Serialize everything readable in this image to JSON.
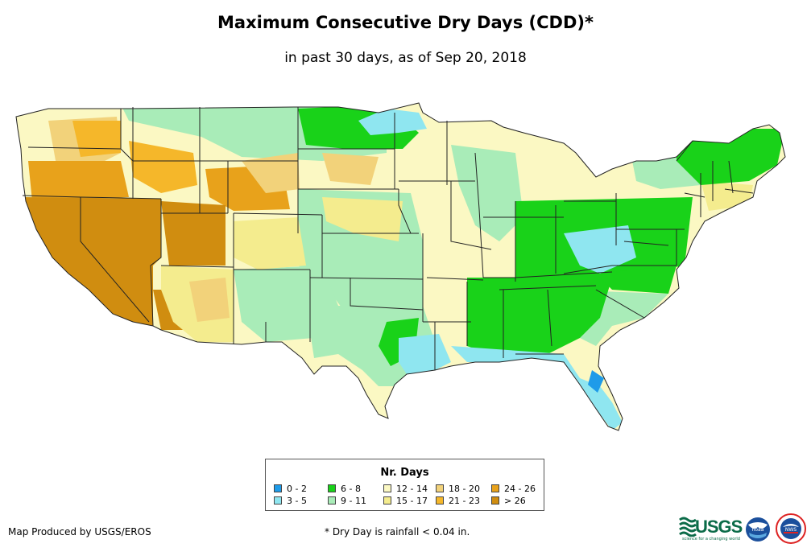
{
  "title": "Maximum Consecutive Dry Days (CDD)*",
  "subtitle": "in past 30 days, as of Sep 20, 2018",
  "legend": {
    "title": "Nr. Days",
    "items": [
      {
        "label": "0 - 2",
        "color": "#1e9be9"
      },
      {
        "label": "3 - 5",
        "color": "#8fe6f0"
      },
      {
        "label": "6 - 8",
        "color": "#19d219"
      },
      {
        "label": "9 - 11",
        "color": "#a9ecb8"
      },
      {
        "label": "12 - 14",
        "color": "#fbf8c3"
      },
      {
        "label": "15 - 17",
        "color": "#f4ec8e"
      },
      {
        "label": "18 - 20",
        "color": "#f2d27a"
      },
      {
        "label": "21 - 23",
        "color": "#f5b72a"
      },
      {
        "label": "24 - 26",
        "color": "#e8a21b"
      },
      {
        "label": "> 26",
        "color": "#d08d10"
      }
    ]
  },
  "credit": "Map Produced by USGS/EROS",
  "footnote": "* Dry Day is rainfall < 0.04 in.",
  "logos": {
    "usgs_text": "USGS",
    "usgs_tagline": "science for a changing world",
    "noaa_text": "noaa",
    "nws_text": "NWS"
  },
  "colors": {
    "state_border": "#222222",
    "usgs_green": "#0b6b48"
  }
}
